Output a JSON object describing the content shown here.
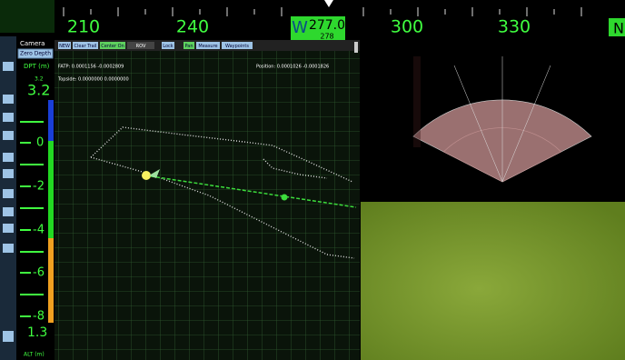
{
  "compass": {
    "ticks": [
      "210",
      "240",
      "300",
      "330"
    ],
    "west": "W",
    "heading": "277.0",
    "sub": "278",
    "north": "N"
  },
  "left": {
    "camera": "Camera",
    "zero_depth": "Zero Depth",
    "depth_label": "DPT (m)",
    "depth_small": "3.2",
    "depth_big": "3.2",
    "scale": [
      "0",
      "-2",
      "-4",
      "-6",
      "-8"
    ],
    "altitude": "1.3",
    "alt_label": "ALT (m)"
  },
  "toolbar": [
    "NEW",
    "Clear Trail",
    "Center On",
    "ROV",
    "Lock",
    "Pan",
    "Measure",
    "Waypoints"
  ],
  "map": {
    "fatp": "FATP: 0.0001156 -0.0002809",
    "topside": "Topside: 0.0000000 0.0000000",
    "position": "Position: 0.0001026 -0.0001826"
  }
}
